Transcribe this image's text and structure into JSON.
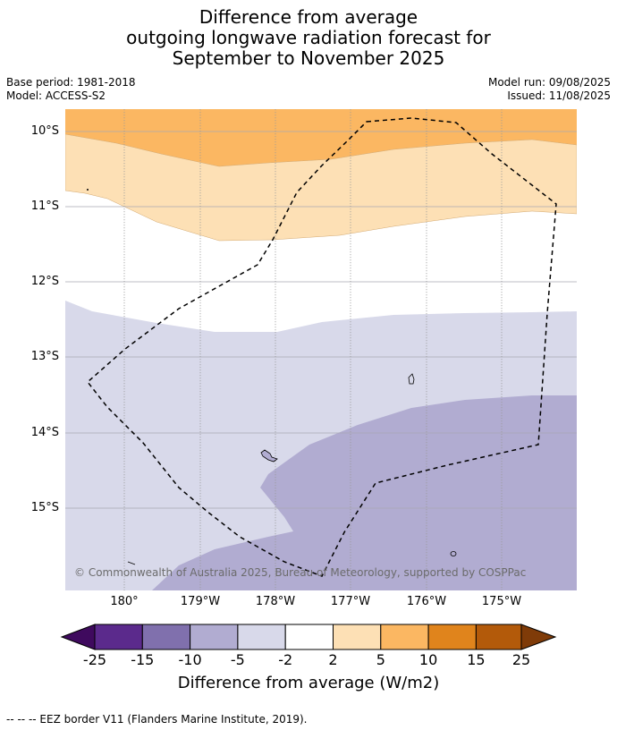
{
  "title": {
    "line1": "Difference from average",
    "line2": "outgoing longwave radiation forecast for",
    "line3": "September to November 2025"
  },
  "meta": {
    "base_period": "Base period: 1981-2018",
    "model": "Model: ACCESS-S2",
    "model_run": "Model run: 09/08/2025",
    "issued": "Issued: 11/08/2025"
  },
  "map": {
    "latitude_labels": [
      "10°S",
      "11°S",
      "12°S",
      "13°S",
      "14°S",
      "15°S"
    ],
    "longitude_labels": [
      "180°",
      "179°W",
      "178°W",
      "177°W",
      "176°W",
      "175°W"
    ],
    "copyright": "© Commonwealth of Australia 2025, Bureau of Meteorology, supported by COSPPac"
  },
  "colorbar": {
    "ticks": [
      "-25",
      "-15",
      "-10",
      "-5",
      "-2",
      "2",
      "5",
      "10",
      "15",
      "25"
    ],
    "colors": [
      "#3f0a5e",
      "#5b2a8c",
      "#8070ad",
      "#b1acd1",
      "#d8d9ea",
      "#ffffff",
      "#fde0b5",
      "#fbb762",
      "#e0841c",
      "#b35a0a",
      "#7f3b08"
    ],
    "label": "Difference from average (W/m2)"
  },
  "footnote": "--  --  -- EEZ border V11 (Flanders Marine Institute, 2019)."
}
